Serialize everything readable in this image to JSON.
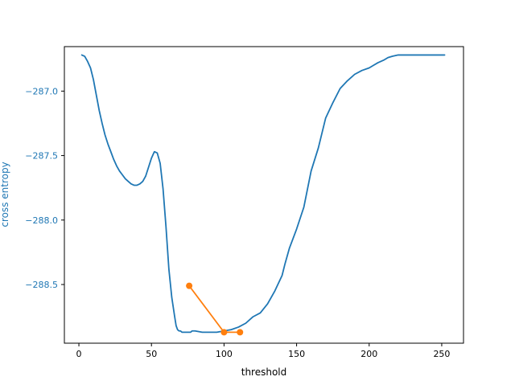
{
  "chart_data": {
    "type": "line",
    "title": "",
    "xlabel": "threshold",
    "ylabel": "cross entropy",
    "xlim": [
      -10,
      265
    ],
    "ylim": [
      -288.955,
      -286.655
    ],
    "xticks": [
      0,
      50,
      100,
      150,
      200,
      250
    ],
    "yticks": [
      -287.0,
      -287.5,
      -288.0,
      -288.5
    ],
    "ytick_labels": [
      "−287.0",
      "−287.5",
      "−288.0",
      "−288.5"
    ],
    "grid": false,
    "series": [
      {
        "color": "#1f77b4",
        "x": [
          2,
          4,
          6,
          8,
          10,
          12,
          14,
          16,
          18,
          20,
          22,
          24,
          26,
          28,
          30,
          32,
          34,
          36,
          38,
          40,
          42,
          44,
          46,
          48,
          50,
          52,
          54,
          56,
          58,
          60,
          62,
          64,
          66,
          67,
          68,
          69,
          70,
          71,
          72,
          73,
          74,
          75,
          76,
          77,
          78,
          80,
          85,
          90,
          95,
          100,
          105,
          110,
          115,
          120,
          125,
          130,
          135,
          140,
          142,
          145,
          150,
          155,
          160,
          165,
          170,
          175,
          180,
          185,
          190,
          195,
          200,
          203,
          206,
          210,
          213,
          216,
          220,
          225,
          230,
          235,
          240,
          245,
          250,
          252
        ],
        "y": [
          -286.72,
          -286.73,
          -286.77,
          -286.82,
          -286.91,
          -287.03,
          -287.15,
          -287.25,
          -287.34,
          -287.41,
          -287.47,
          -287.53,
          -287.58,
          -287.62,
          -287.65,
          -287.68,
          -287.7,
          -287.72,
          -287.73,
          -287.73,
          -287.72,
          -287.7,
          -287.66,
          -287.59,
          -287.52,
          -287.47,
          -287.48,
          -287.56,
          -287.76,
          -288.05,
          -288.38,
          -288.6,
          -288.75,
          -288.82,
          -288.85,
          -288.86,
          -288.86,
          -288.87,
          -288.87,
          -288.87,
          -288.87,
          -288.87,
          -288.87,
          -288.87,
          -288.86,
          -288.86,
          -288.87,
          -288.87,
          -288.87,
          -288.86,
          -288.85,
          -288.83,
          -288.8,
          -288.75,
          -288.72,
          -288.65,
          -288.55,
          -288.43,
          -288.34,
          -288.22,
          -288.07,
          -287.9,
          -287.62,
          -287.44,
          -287.21,
          -287.09,
          -286.98,
          -286.92,
          -286.87,
          -286.84,
          -286.82,
          -286.8,
          -286.78,
          -286.76,
          -286.74,
          -286.73,
          -286.72,
          -286.72,
          -286.72,
          -286.72,
          -286.72,
          -286.72,
          -286.72,
          -286.72
        ]
      },
      {
        "color": "#ff7f0e",
        "markers": true,
        "x": [
          76,
          100,
          111
        ],
        "y": [
          -288.51,
          -288.87,
          -288.87
        ]
      }
    ]
  }
}
